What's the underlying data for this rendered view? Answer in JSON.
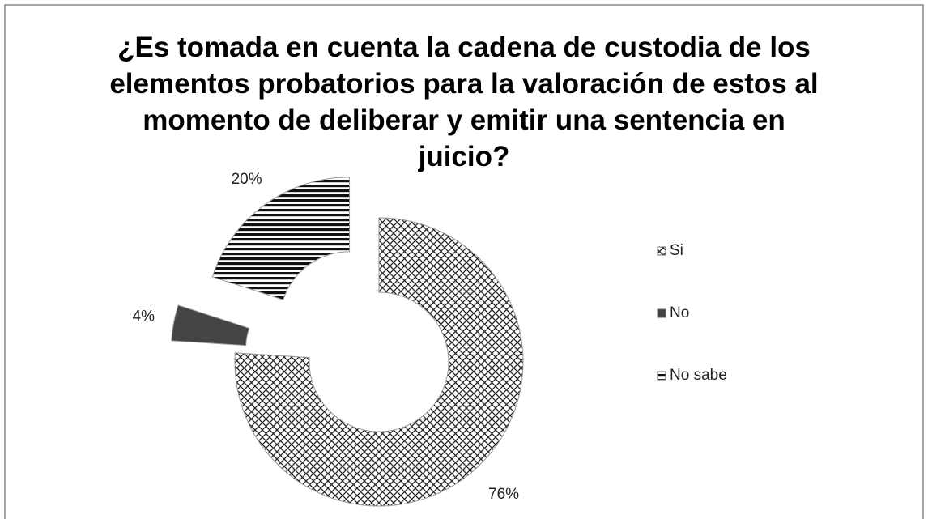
{
  "chart_data": {
    "type": "doughnut",
    "title": "¿Es tomada en cuenta la cadena de custodia de los elementos probatorios para la valoración de estos al momento de deliberar y emitir una sentencia en juicio?",
    "categories": [
      "Si",
      "No",
      "No sabe"
    ],
    "values": [
      76,
      4,
      20
    ],
    "value_labels": [
      "76%",
      "4%",
      "20%"
    ],
    "legend": "right"
  }
}
